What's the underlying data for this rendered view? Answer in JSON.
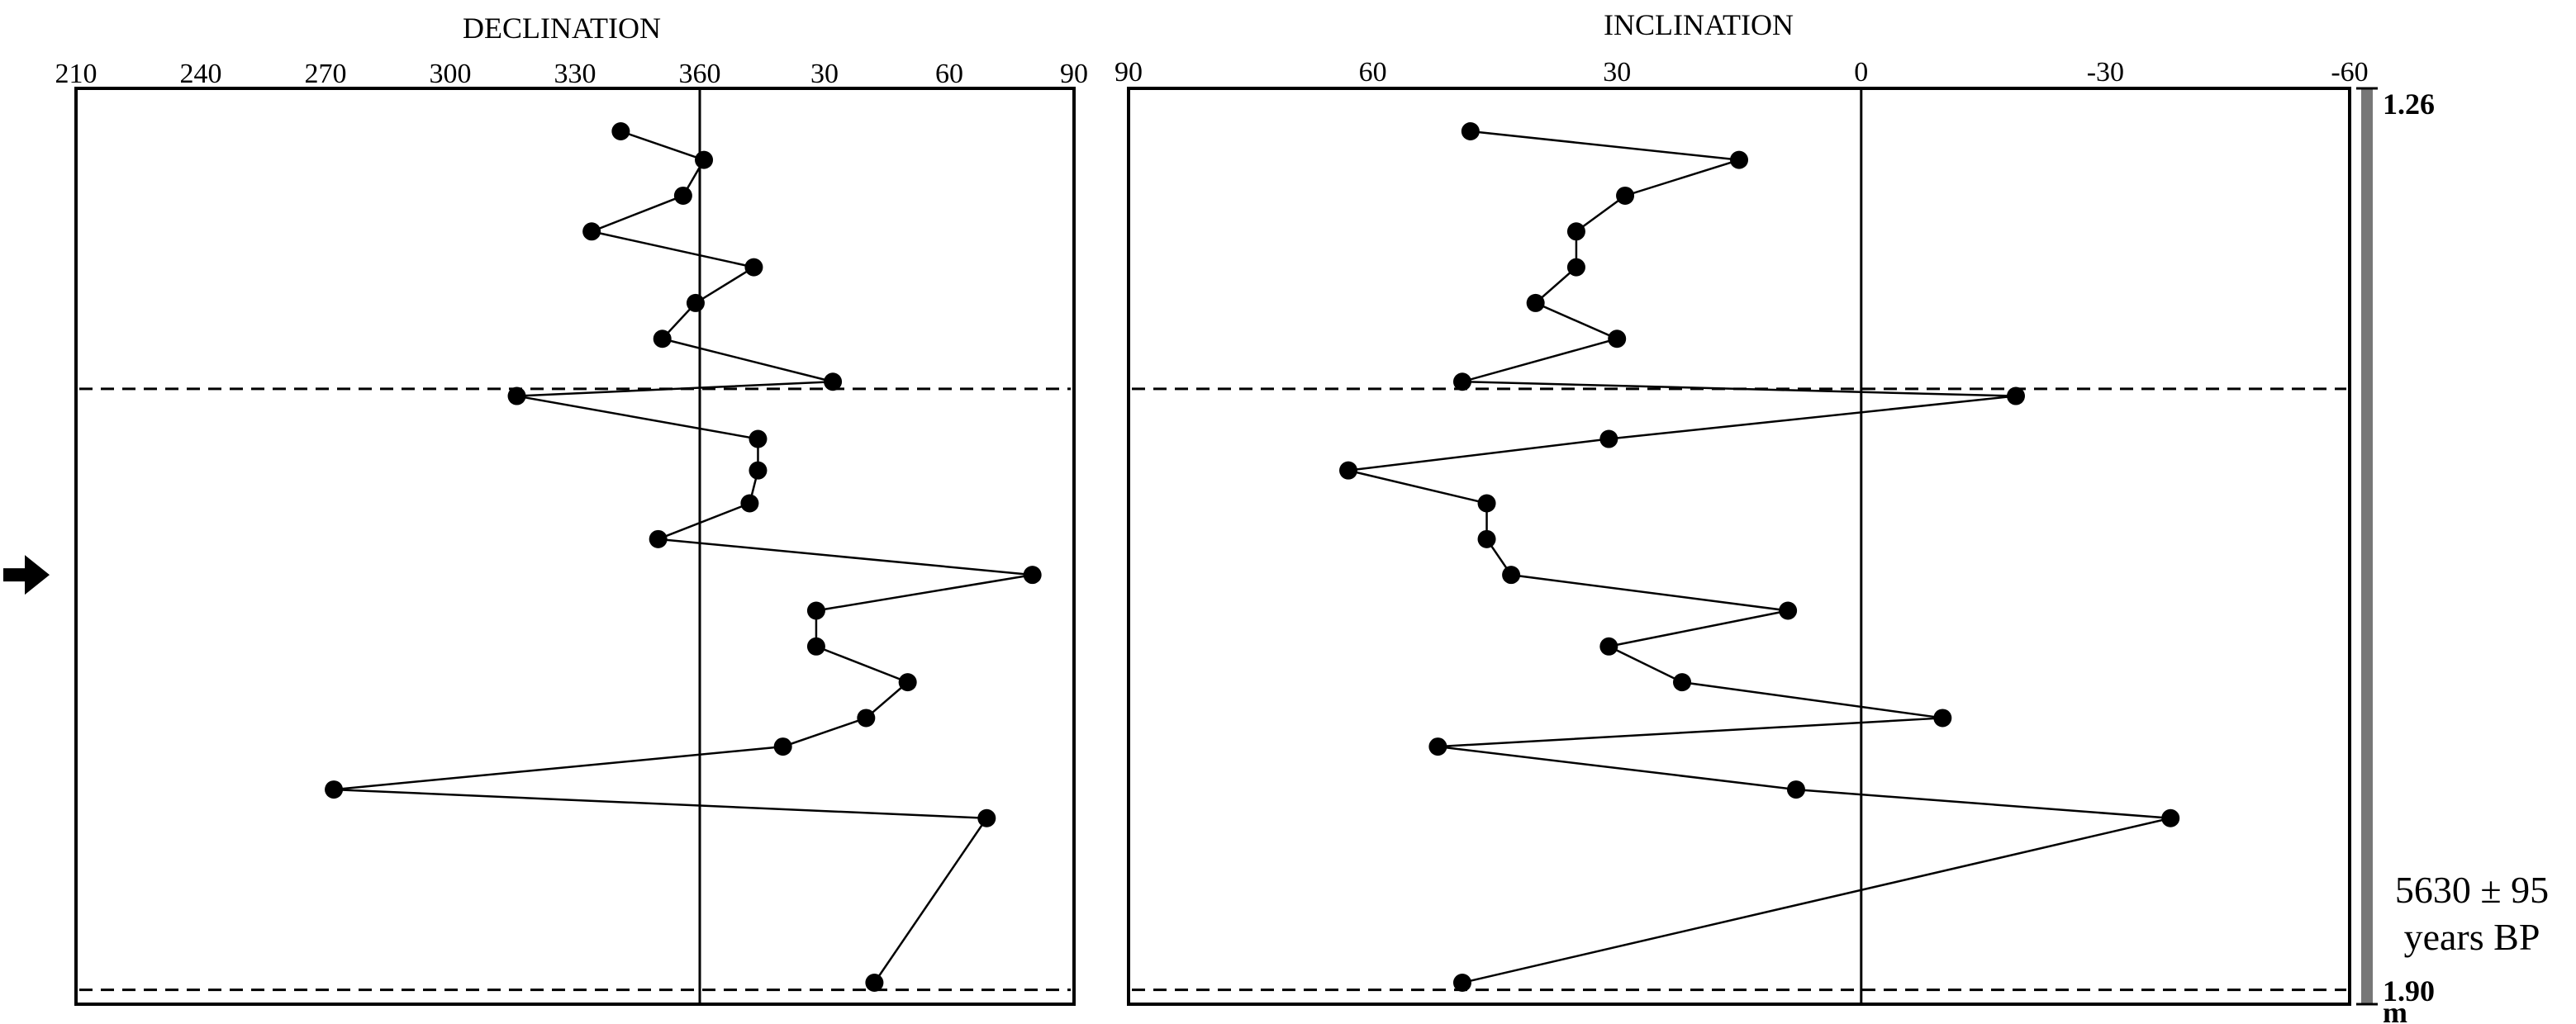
{
  "chart_data": [
    {
      "type": "line",
      "title": "DECLINATION",
      "x_unit": "degrees",
      "x_ticks": [
        210,
        240,
        270,
        300,
        330,
        360,
        30,
        60,
        90
      ],
      "xlim": [
        210,
        450
      ],
      "ylim_depth_m": [
        1.26,
        1.9
      ],
      "reference_line_x": 360,
      "dashed_depth_lines": [
        1.47,
        1.89
      ],
      "series": [
        {
          "values": [
            341,
            361,
            356,
            334,
            373,
            359,
            351,
            392,
            316,
            374,
            374,
            372,
            350,
            440,
            388,
            388,
            410,
            400,
            380,
            272,
            429,
            402
          ]
        }
      ]
    },
    {
      "type": "line",
      "title": "INCLINATION",
      "x_unit": "degrees",
      "x_ticks": [
        90,
        60,
        30,
        0,
        -30,
        -60
      ],
      "xlim": [
        90,
        -60
      ],
      "reversed_x": true,
      "reference_line_x": 0,
      "dashed_depth_lines": [
        1.47,
        1.89
      ],
      "series": [
        {
          "values": [
            48,
            15,
            29,
            35,
            35,
            40,
            30,
            49,
            -19,
            31,
            63,
            46,
            46,
            43,
            9,
            31,
            22,
            -10,
            52,
            8,
            -38,
            49
          ]
        }
      ]
    }
  ],
  "depth_axis": {
    "top_label": "1.26",
    "bottom_label": "1.90",
    "unit_label": "m"
  },
  "depths": [
    1.29,
    1.31,
    1.335,
    1.36,
    1.385,
    1.41,
    1.435,
    1.465,
    1.475,
    1.505,
    1.527,
    1.55,
    1.575,
    1.6,
    1.625,
    1.65,
    1.675,
    1.7,
    1.72,
    1.75,
    1.77,
    1.885
  ],
  "arrow": {
    "icon": "right-arrow-icon",
    "depth": 1.6
  },
  "age_annotation": {
    "line1": "5630 ± 95",
    "line2": "years BP"
  }
}
